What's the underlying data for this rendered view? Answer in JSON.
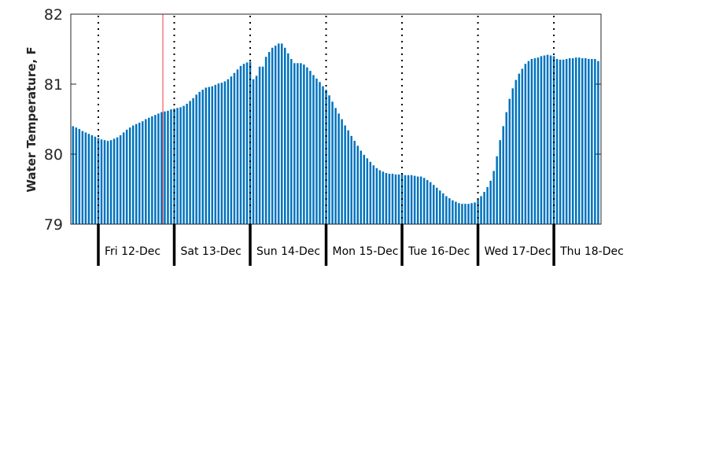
{
  "chart_data": {
    "type": "bar",
    "title": "",
    "xlabel": "",
    "ylabel": "Water Temperature, F",
    "ylim": [
      79,
      82
    ],
    "yticks": [
      "79",
      "80",
      "81",
      "82"
    ],
    "x_units": "hours relative to Fri 12-Dec 00:00",
    "xlim": [
      -8.7,
      158.9
    ],
    "bar_color": "#0072BD",
    "now_marker": {
      "hour": 20.4,
      "color": "#E8403F"
    },
    "day_labels": [
      "Fri 12-Dec",
      "Sat 13-Dec",
      "Sun 14-Dec",
      "Mon 15-Dec",
      "Tue 16-Dec",
      "Wed 17-Dec",
      "Thu 18-Dec"
    ],
    "first_hour": -8,
    "values": [
      80.4,
      80.38,
      80.36,
      80.33,
      80.31,
      80.29,
      80.27,
      80.25,
      80.23,
      80.21,
      80.2,
      80.19,
      80.2,
      80.22,
      80.24,
      80.27,
      80.31,
      80.35,
      80.38,
      80.41,
      80.43,
      80.45,
      80.47,
      80.5,
      80.52,
      80.54,
      80.56,
      80.58,
      80.6,
      80.61,
      80.62,
      80.64,
      80.65,
      80.66,
      80.67,
      80.69,
      80.72,
      80.76,
      80.8,
      80.85,
      80.89,
      80.92,
      80.95,
      80.96,
      80.97,
      80.99,
      81.01,
      81.02,
      81.04,
      81.07,
      81.11,
      81.16,
      81.21,
      81.26,
      81.29,
      81.31,
      81.32,
      81.07,
      81.12,
      81.25,
      81.25,
      81.39,
      81.46,
      81.52,
      81.55,
      81.58,
      81.58,
      81.52,
      81.44,
      81.36,
      81.3,
      81.3,
      81.3,
      81.28,
      81.24,
      81.19,
      81.13,
      81.08,
      81.03,
      80.97,
      80.92,
      80.84,
      80.75,
      80.66,
      80.58,
      80.5,
      80.41,
      80.34,
      80.26,
      80.19,
      80.12,
      80.05,
      79.99,
      79.94,
      79.89,
      79.84,
      79.8,
      79.77,
      79.75,
      79.73,
      79.72,
      79.72,
      79.71,
      79.71,
      79.71,
      79.7,
      79.7,
      79.7,
      79.69,
      79.68,
      79.68,
      79.66,
      79.63,
      79.6,
      79.56,
      79.52,
      79.48,
      79.44,
      79.4,
      79.37,
      79.34,
      79.32,
      79.3,
      79.29,
      79.29,
      79.29,
      79.3,
      79.31,
      79.35,
      79.4,
      79.46,
      79.53,
      79.62,
      79.76,
      79.97,
      80.2,
      80.4,
      80.6,
      80.79,
      80.94,
      81.06,
      81.15,
      81.22,
      81.29,
      81.33,
      81.36,
      81.37,
      81.38,
      81.4,
      81.41,
      81.42,
      81.41,
      81.4,
      81.36,
      81.35,
      81.35,
      81.36,
      81.37,
      81.37,
      81.38,
      81.38,
      81.37,
      81.37,
      81.36,
      81.36,
      81.36,
      81.33
    ]
  }
}
